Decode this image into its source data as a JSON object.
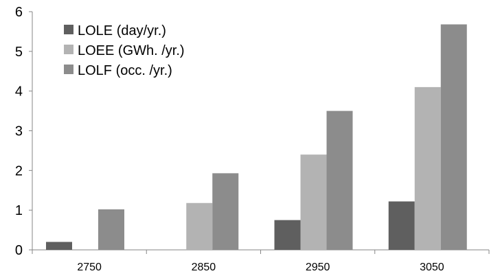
{
  "chart_data": {
    "type": "bar",
    "categories": [
      "2750",
      "2850",
      "2950",
      "3050"
    ],
    "series": [
      {
        "name": "LOLE (day/yr.)",
        "color": "#5f5f5f",
        "values": [
          0.2,
          0.0,
          0.75,
          1.22
        ]
      },
      {
        "name": "LOEE (GWh. /yr.)",
        "color": "#b3b3b3",
        "values": [
          0.0,
          1.18,
          2.4,
          4.1
        ]
      },
      {
        "name": "LOLF (occ. /yr.)",
        "color": "#8c8c8c",
        "values": [
          1.02,
          1.93,
          3.5,
          5.68
        ]
      }
    ],
    "y_ticks": [
      "0",
      "1",
      "2",
      "3",
      "4",
      "5",
      "6"
    ],
    "ylim": [
      0,
      6
    ],
    "grid": false,
    "legend_position": "top-left"
  }
}
